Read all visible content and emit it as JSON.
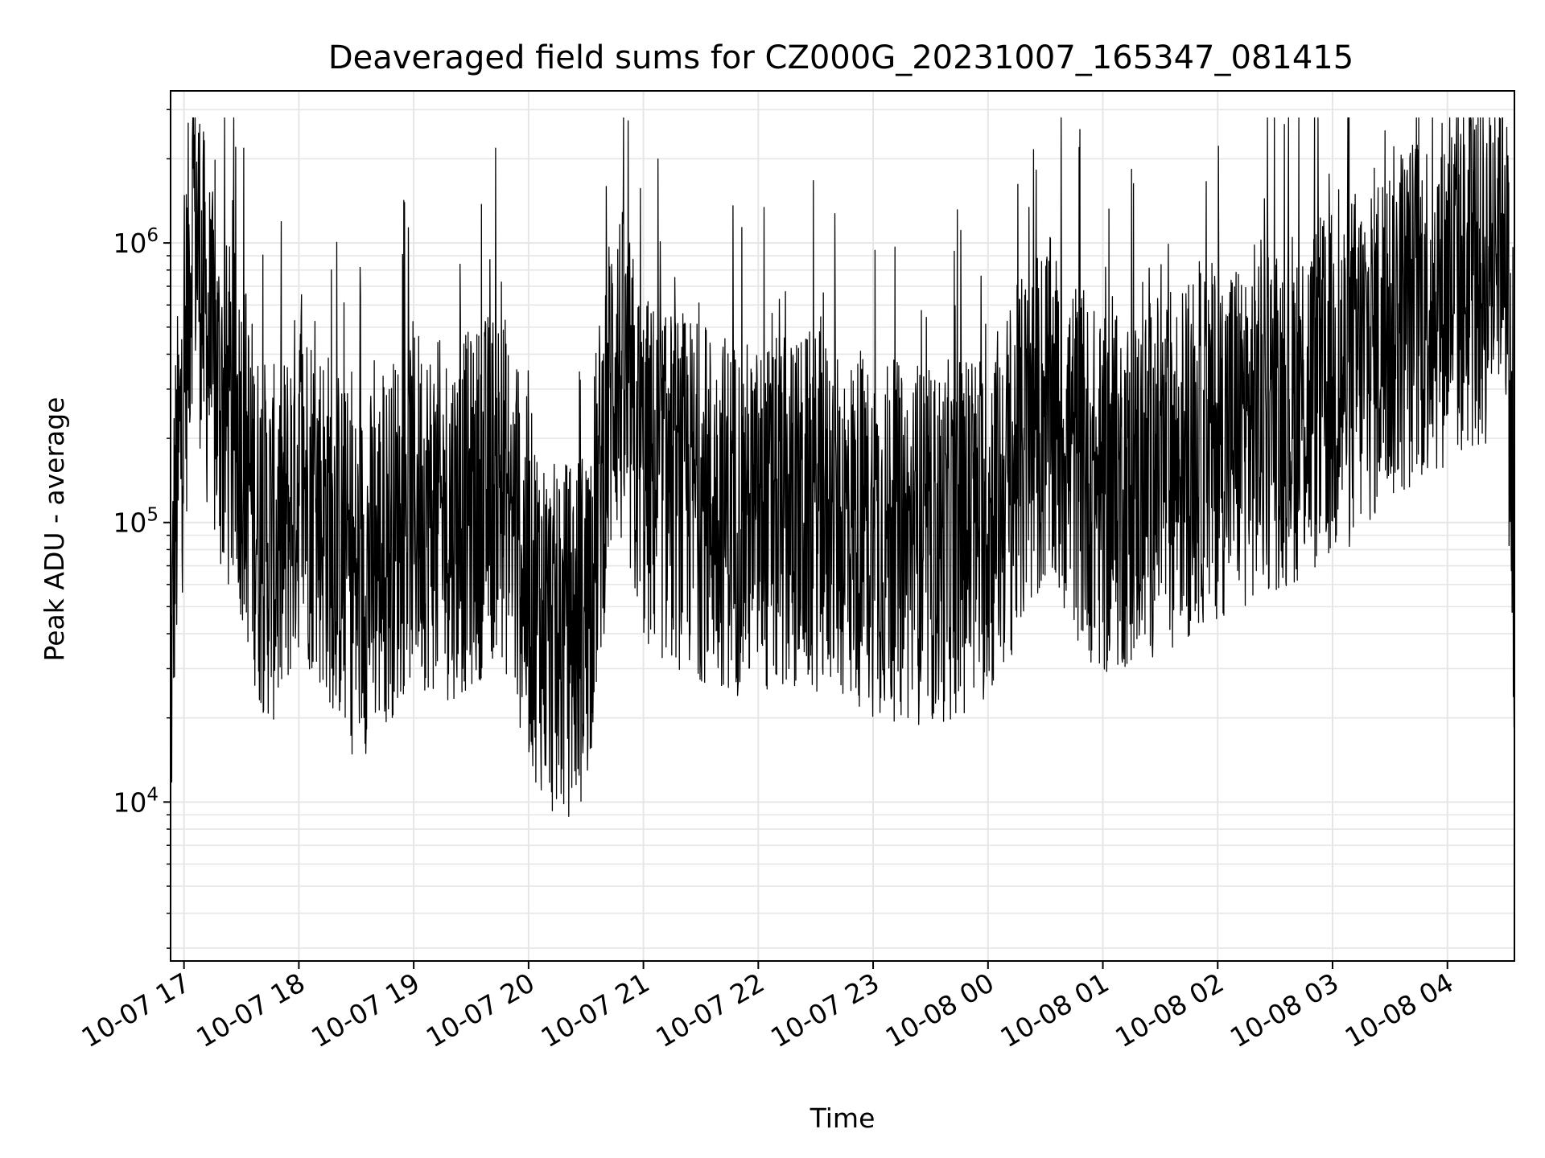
{
  "chart_data": {
    "type": "line",
    "title": "Deaveraged field sums for CZ000G_20231007_165347_081415",
    "xlabel": "Time",
    "ylabel": "Peak ADU - average",
    "yscale": "log",
    "ylim": [
      2700,
      3500000
    ],
    "xlim": [
      "2023-10-07 16:53",
      "2023-10-08 04:35"
    ],
    "grid": true,
    "line_color": "#000000",
    "x_ticks": [
      "10-07 17",
      "10-07 18",
      "10-07 19",
      "10-07 20",
      "10-07 21",
      "10-07 22",
      "10-07 23",
      "10-08 00",
      "10-08 01",
      "10-08 02",
      "10-08 03",
      "10-08 04"
    ],
    "y_ticks": [
      {
        "exp": "4",
        "value": 10000
      },
      {
        "exp": "5",
        "value": 100000
      },
      {
        "exp": "6",
        "value": 1000000
      }
    ],
    "series": [
      {
        "x": [
          "2023-10-07 16:53",
          "2023-10-07 16:55",
          "2023-10-07 17:00",
          "2023-10-07 17:05",
          "2023-10-07 17:10",
          "2023-10-07 17:15",
          "2023-10-07 17:20",
          "2023-10-07 17:30",
          "2023-10-07 17:40",
          "2023-10-07 17:50",
          "2023-10-07 18:00",
          "2023-10-07 18:15",
          "2023-10-07 18:30",
          "2023-10-07 18:45",
          "2023-10-07 19:00",
          "2023-10-07 19:15",
          "2023-10-07 19:30",
          "2023-10-07 19:45",
          "2023-10-07 20:00",
          "2023-10-07 20:15",
          "2023-10-07 20:30",
          "2023-10-07 20:45",
          "2023-10-07 21:00",
          "2023-10-07 21:30",
          "2023-10-07 22:00",
          "2023-10-07 22:30",
          "2023-10-07 23:00",
          "2023-10-07 23:30",
          "2023-10-08 00:00",
          "2023-10-08 00:30",
          "2023-10-08 01:00",
          "2023-10-08 01:30",
          "2023-10-08 02:00",
          "2023-10-08 02:30",
          "2023-10-08 03:00",
          "2023-10-08 03:30",
          "2023-10-08 04:00",
          "2023-10-08 04:20",
          "2023-10-08 04:30",
          "2023-10-08 04:35"
        ],
        "values": [
          20000,
          90000,
          300000,
          1500000,
          600000,
          350000,
          250000,
          200000,
          90000,
          80000,
          150000,
          100000,
          60000,
          80000,
          120000,
          100000,
          110000,
          150000,
          60000,
          35000,
          45000,
          400000,
          150000,
          120000,
          100000,
          110000,
          90000,
          80000,
          100000,
          250000,
          120000,
          150000,
          200000,
          250000,
          300000,
          500000,
          700000,
          800000,
          1500000,
          60000
        ]
      }
    ]
  }
}
